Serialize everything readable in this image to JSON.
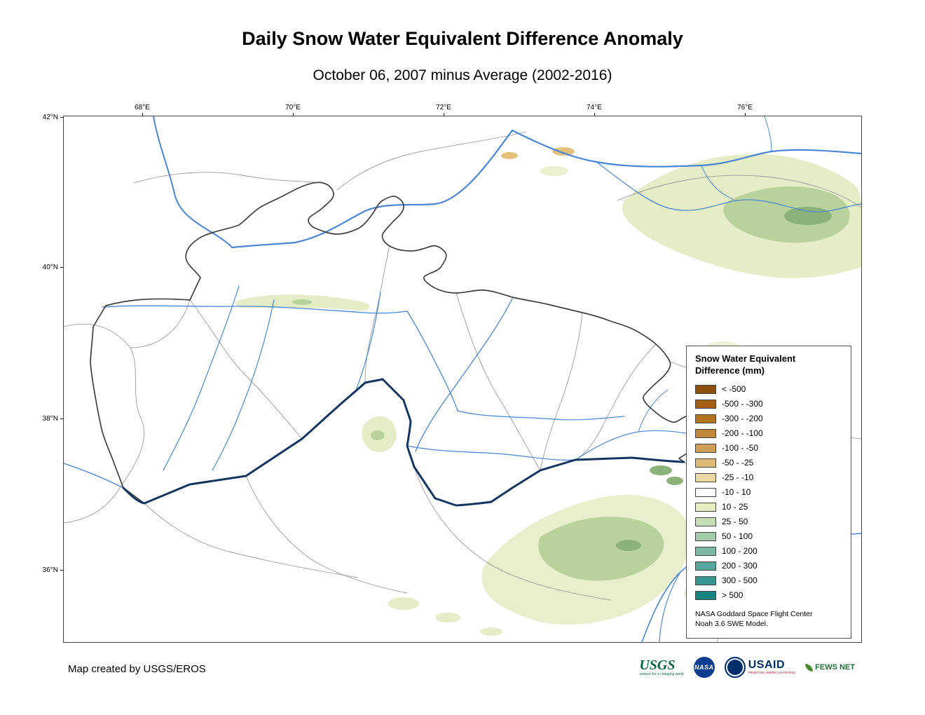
{
  "page": {
    "title": "Daily Snow Water Equivalent Difference Anomaly",
    "subtitle": "October 06, 2007 minus Average (2002-2016)",
    "credit": "Map created by USGS/EROS"
  },
  "map": {
    "x_ticks": [
      "68°E",
      "70°E",
      "72°E",
      "74°E",
      "76°E"
    ],
    "y_ticks": [
      "42°N",
      "40°N",
      "38°N",
      "36°N"
    ],
    "colors": {
      "river": "#4A86D8",
      "major_river": "#14355F",
      "country_boundary": "#3F3F3F",
      "watershed_boundary": "#9B9B9B",
      "positive_light": "#E4EDC6",
      "positive_medium": "#B9D29C",
      "positive_dark": "#8BB278",
      "negative_patch": "#E3C07C",
      "background": "#FFFFFF"
    }
  },
  "legend": {
    "title_line1": "Snow Water Equivalent",
    "title_line2": "Difference (mm)",
    "entries": [
      {
        "label": "< -500",
        "color": "#8C4F0C"
      },
      {
        "label": "-500 - -300",
        "color": "#A35E13"
      },
      {
        "label": "-300 - -200",
        "color": "#B4731F"
      },
      {
        "label": "-200 - -100",
        "color": "#C1873B"
      },
      {
        "label": "-100 - -50",
        "color": "#CF9F57"
      },
      {
        "label": "-50 - -25",
        "color": "#DDBA78"
      },
      {
        "label": "-25 - -10",
        "color": "#EDD9A3"
      },
      {
        "label": "-10 - 10",
        "color": "#FFFFFF"
      },
      {
        "label": "10 - 25",
        "color": "#E3ECC3"
      },
      {
        "label": "25 - 50",
        "color": "#C6DDB5"
      },
      {
        "label": "50 - 100",
        "color": "#A3CBAA"
      },
      {
        "label": "100 - 200",
        "color": "#7DB8A3"
      },
      {
        "label": "200 - 300",
        "color": "#57A79D"
      },
      {
        "label": "300 - 500",
        "color": "#379590"
      },
      {
        "label": "> 500",
        "color": "#17827F"
      }
    ],
    "note_line1": "NASA Goddard Space Flight Center",
    "note_line2": "Noah 3.6 SWE Model."
  },
  "logos": {
    "usgs": {
      "text": "USGS",
      "tagline": "science for a changing world"
    },
    "nasa": {
      "text": "NASA"
    },
    "usaid": {
      "text": "USAID",
      "tagline": "FROM THE AMERICAN PEOPLE"
    },
    "fewsnet": {
      "text": "FEWS NET"
    }
  }
}
